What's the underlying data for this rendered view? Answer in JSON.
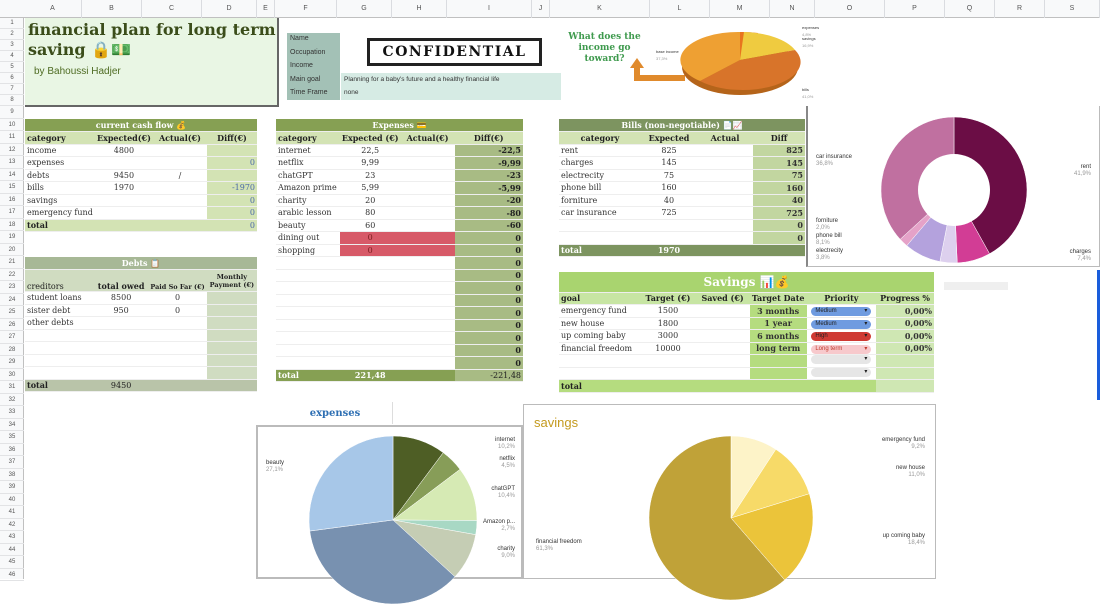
{
  "columns": [
    "A",
    "B",
    "C",
    "D",
    "E",
    "F",
    "G",
    "H",
    "I",
    "J",
    "K",
    "L",
    "M",
    "N",
    "O",
    "P",
    "Q",
    "R",
    "S"
  ],
  "rows": [
    "1",
    "2",
    "3",
    "4",
    "5",
    "6",
    "7",
    "8",
    "9",
    "10",
    "11",
    "12",
    "13",
    "14",
    "15",
    "16",
    "17",
    "18",
    "19",
    "20",
    "21",
    "22",
    "23",
    "24",
    "25",
    "26",
    "27",
    "28",
    "29",
    "30",
    "31",
    "32",
    "33",
    "34",
    "35",
    "36",
    "37",
    "38",
    "39",
    "40",
    "41",
    "42",
    "43",
    "44",
    "45",
    "46"
  ],
  "title_card": {
    "title": "financial plan for long term saving 🔒💵",
    "author": "by Bahoussi Hadjer"
  },
  "profile": {
    "labels": [
      "Name",
      "Occupation",
      "Income",
      "Main goal",
      "Time Frame"
    ],
    "stamp": "CONFIDENTIAL",
    "main_goal": "Planning for a baby's future and a healthy financial life",
    "time_frame": "none"
  },
  "income_chart": {
    "heading": "What does the income go toward?",
    "slices": [
      {
        "label": "expenses",
        "pct": "4,8%"
      },
      {
        "label": "savings",
        "pct": "16,9%"
      },
      {
        "label": "bills",
        "pct": "41,0%"
      },
      {
        "label": "base income",
        "pct": "37,3%"
      }
    ]
  },
  "cash_flow": {
    "title": "current cash flow 💰",
    "headers": [
      "category",
      "Expected(€)",
      "Actual(€)",
      "Diff(€)"
    ],
    "rows": [
      [
        "income",
        "4800",
        "",
        ""
      ],
      [
        "expenses",
        "",
        "",
        "0"
      ],
      [
        "debts",
        "9450",
        "/",
        ""
      ],
      [
        "bills",
        "1970",
        "",
        "-1970"
      ],
      [
        "savings",
        "",
        "",
        "0"
      ],
      [
        "emergency fund",
        "",
        "",
        "0"
      ]
    ],
    "total": [
      "total",
      "",
      "",
      "0"
    ]
  },
  "debts": {
    "title": "Debts 📋",
    "headers": [
      "creditors",
      "total owed",
      "Paid So Far (€)",
      "Monthly Payment (€)"
    ],
    "rows": [
      [
        "student loans",
        "8500",
        "0",
        ""
      ],
      [
        "sister debt",
        "950",
        "0",
        ""
      ],
      [
        "other debts",
        "",
        "",
        ""
      ],
      [
        "",
        "",
        "",
        ""
      ],
      [
        "",
        "",
        "",
        ""
      ],
      [
        "",
        "",
        "",
        ""
      ],
      [
        "",
        "",
        "",
        ""
      ]
    ],
    "total": [
      "total",
      "9450",
      "",
      ""
    ]
  },
  "expenses": {
    "title": "Expenses 💳",
    "headers": [
      "category",
      "Expected (€)",
      "Actual(€)",
      "Diff(€)"
    ],
    "rows": [
      [
        "internet",
        "22,5",
        "",
        "-22,5"
      ],
      [
        "netflix",
        "9,99",
        "",
        "-9,99"
      ],
      [
        "chatGPT",
        "23",
        "",
        "-23"
      ],
      [
        "Amazon prime",
        "5,99",
        "",
        "-5,99"
      ],
      [
        "charity",
        "20",
        "",
        "-20"
      ],
      [
        "arabic lesson",
        "80",
        "",
        "-80"
      ],
      [
        "beauty",
        "60",
        "",
        "-60"
      ],
      [
        "dining out",
        "0",
        "",
        "0"
      ],
      [
        "shopping",
        "0",
        "",
        "0"
      ],
      [
        "",
        "",
        "",
        "0"
      ],
      [
        "",
        "",
        "",
        "0"
      ],
      [
        "",
        "",
        "",
        "0"
      ],
      [
        "",
        "",
        "",
        "0"
      ],
      [
        "",
        "",
        "",
        "0"
      ],
      [
        "",
        "",
        "",
        "0"
      ],
      [
        "",
        "",
        "",
        "0"
      ],
      [
        "",
        "",
        "",
        "0"
      ],
      [
        "",
        "",
        "",
        "0"
      ]
    ],
    "total": [
      "total",
      "221,48",
      "",
      "-221,48"
    ]
  },
  "bills": {
    "title": "Bills (non-negotiable) 📄📈",
    "headers": [
      "category",
      "Expected",
      "Actual",
      "Diff"
    ],
    "rows": [
      [
        "rent",
        "825",
        "",
        "825"
      ],
      [
        "charges",
        "145",
        "",
        "145"
      ],
      [
        "electrecity",
        "75",
        "",
        "75"
      ],
      [
        "phone bill",
        "160",
        "",
        "160"
      ],
      [
        "forniture",
        "40",
        "",
        "40"
      ],
      [
        "car insurance",
        "725",
        "",
        "725"
      ],
      [
        "",
        "",
        "",
        "0"
      ],
      [
        "",
        "",
        "",
        "0"
      ]
    ],
    "total": [
      "total",
      "1970",
      "",
      ""
    ]
  },
  "savings": {
    "title": "Savings 📊💰",
    "headers": [
      "goal",
      "Target (€)",
      "Saved (€)",
      "Target Date",
      "Priority",
      "Progress %"
    ],
    "rows": [
      {
        "goal": "emergency fund",
        "target": "1500",
        "saved": "",
        "date": "3 months",
        "priority": "Medium",
        "progress": "0,00%"
      },
      {
        "goal": "new house",
        "target": "1800",
        "saved": "",
        "date": "1 year",
        "priority": "Medium",
        "progress": "0,00%"
      },
      {
        "goal": "up coming baby",
        "target": "3000",
        "saved": "",
        "date": "6 months",
        "priority": "High",
        "progress": "0,00%"
      },
      {
        "goal": "financial freedom",
        "target": "10000",
        "saved": "",
        "date": "long term",
        "priority": "Long term",
        "progress": "0,00%"
      },
      {
        "goal": "",
        "target": "",
        "saved": "",
        "date": "",
        "priority": "",
        "progress": ""
      },
      {
        "goal": "",
        "target": "",
        "saved": "",
        "date": "",
        "priority": "",
        "progress": ""
      }
    ],
    "total": "total",
    "priority_colors": {
      "Medium": "#6f9be0",
      "High": "#cf3a33",
      "Long term": "#f7c9cc",
      "": "#e6e6e6"
    }
  },
  "chart_data": [
    {
      "type": "pie",
      "title": "What does the income go toward?",
      "categories": [
        "expenses",
        "savings",
        "bills",
        "base income"
      ],
      "values": [
        4.8,
        16.9,
        41.0,
        37.3
      ],
      "legend": "labels"
    },
    {
      "type": "pie",
      "title": "",
      "donut": true,
      "categories": [
        "rent",
        "charges",
        "electrecity",
        "phone bill",
        "forniture",
        "car insurance"
      ],
      "values": [
        41.9,
        7.4,
        3.8,
        8.1,
        2.0,
        36.8
      ],
      "colors": [
        "#6b0d45",
        "#d23d95",
        "#ddd0ee",
        "#b4a2dd",
        "#e5a2c8",
        "#c070a0"
      ]
    },
    {
      "type": "pie",
      "title": "expenses",
      "categories": [
        "internet",
        "netflix",
        "chatGPT",
        "Amazon prime",
        "charity",
        "arabic lesson",
        "beauty"
      ],
      "values": [
        10.2,
        4.5,
        10.4,
        2.7,
        9.0,
        36.1,
        27.1
      ],
      "colors": [
        "#4e5e25",
        "#879d58",
        "#d6eab4",
        "#a8d8c4",
        "#c5cdb4",
        "#7891b0",
        "#a7c7e8"
      ]
    },
    {
      "type": "pie",
      "title": "savings",
      "categories": [
        "emergency fund",
        "new house",
        "up coming baby",
        "financial freedom"
      ],
      "values": [
        9.2,
        11.0,
        18.4,
        61.3
      ],
      "colors": [
        "#fdf3c8",
        "#f7da68",
        "#ebc43a",
        "#c0a238"
      ]
    }
  ],
  "charts": {
    "bills_labels": [
      {
        "label": "rent",
        "pct": "41,9%"
      },
      {
        "label": "charges",
        "pct": "7,4%"
      },
      {
        "label": "electrecity",
        "pct": "3,8%"
      },
      {
        "label": "phone bill",
        "pct": "8,1%"
      },
      {
        "label": "forniture",
        "pct": "2,0%"
      },
      {
        "label": "car insurance",
        "pct": "36,8%"
      }
    ],
    "expenses_title": "expenses",
    "expenses_labels": [
      {
        "label": "internet",
        "pct": "10,2%"
      },
      {
        "label": "netflix",
        "pct": "4,5%"
      },
      {
        "label": "chatGPT",
        "pct": "10,4%"
      },
      {
        "label": "Amazon p...",
        "pct": "2,7%"
      },
      {
        "label": "charity",
        "pct": "9,0%"
      },
      {
        "label": "beauty",
        "pct": "27,1%"
      }
    ],
    "savings_title": "savings",
    "savings_labels": [
      {
        "label": "emergency fund",
        "pct": "9,2%"
      },
      {
        "label": "new house",
        "pct": "11,0%"
      },
      {
        "label": "up coming baby",
        "pct": "18,4%"
      },
      {
        "label": "financial freedom",
        "pct": "61,3%"
      }
    ]
  }
}
